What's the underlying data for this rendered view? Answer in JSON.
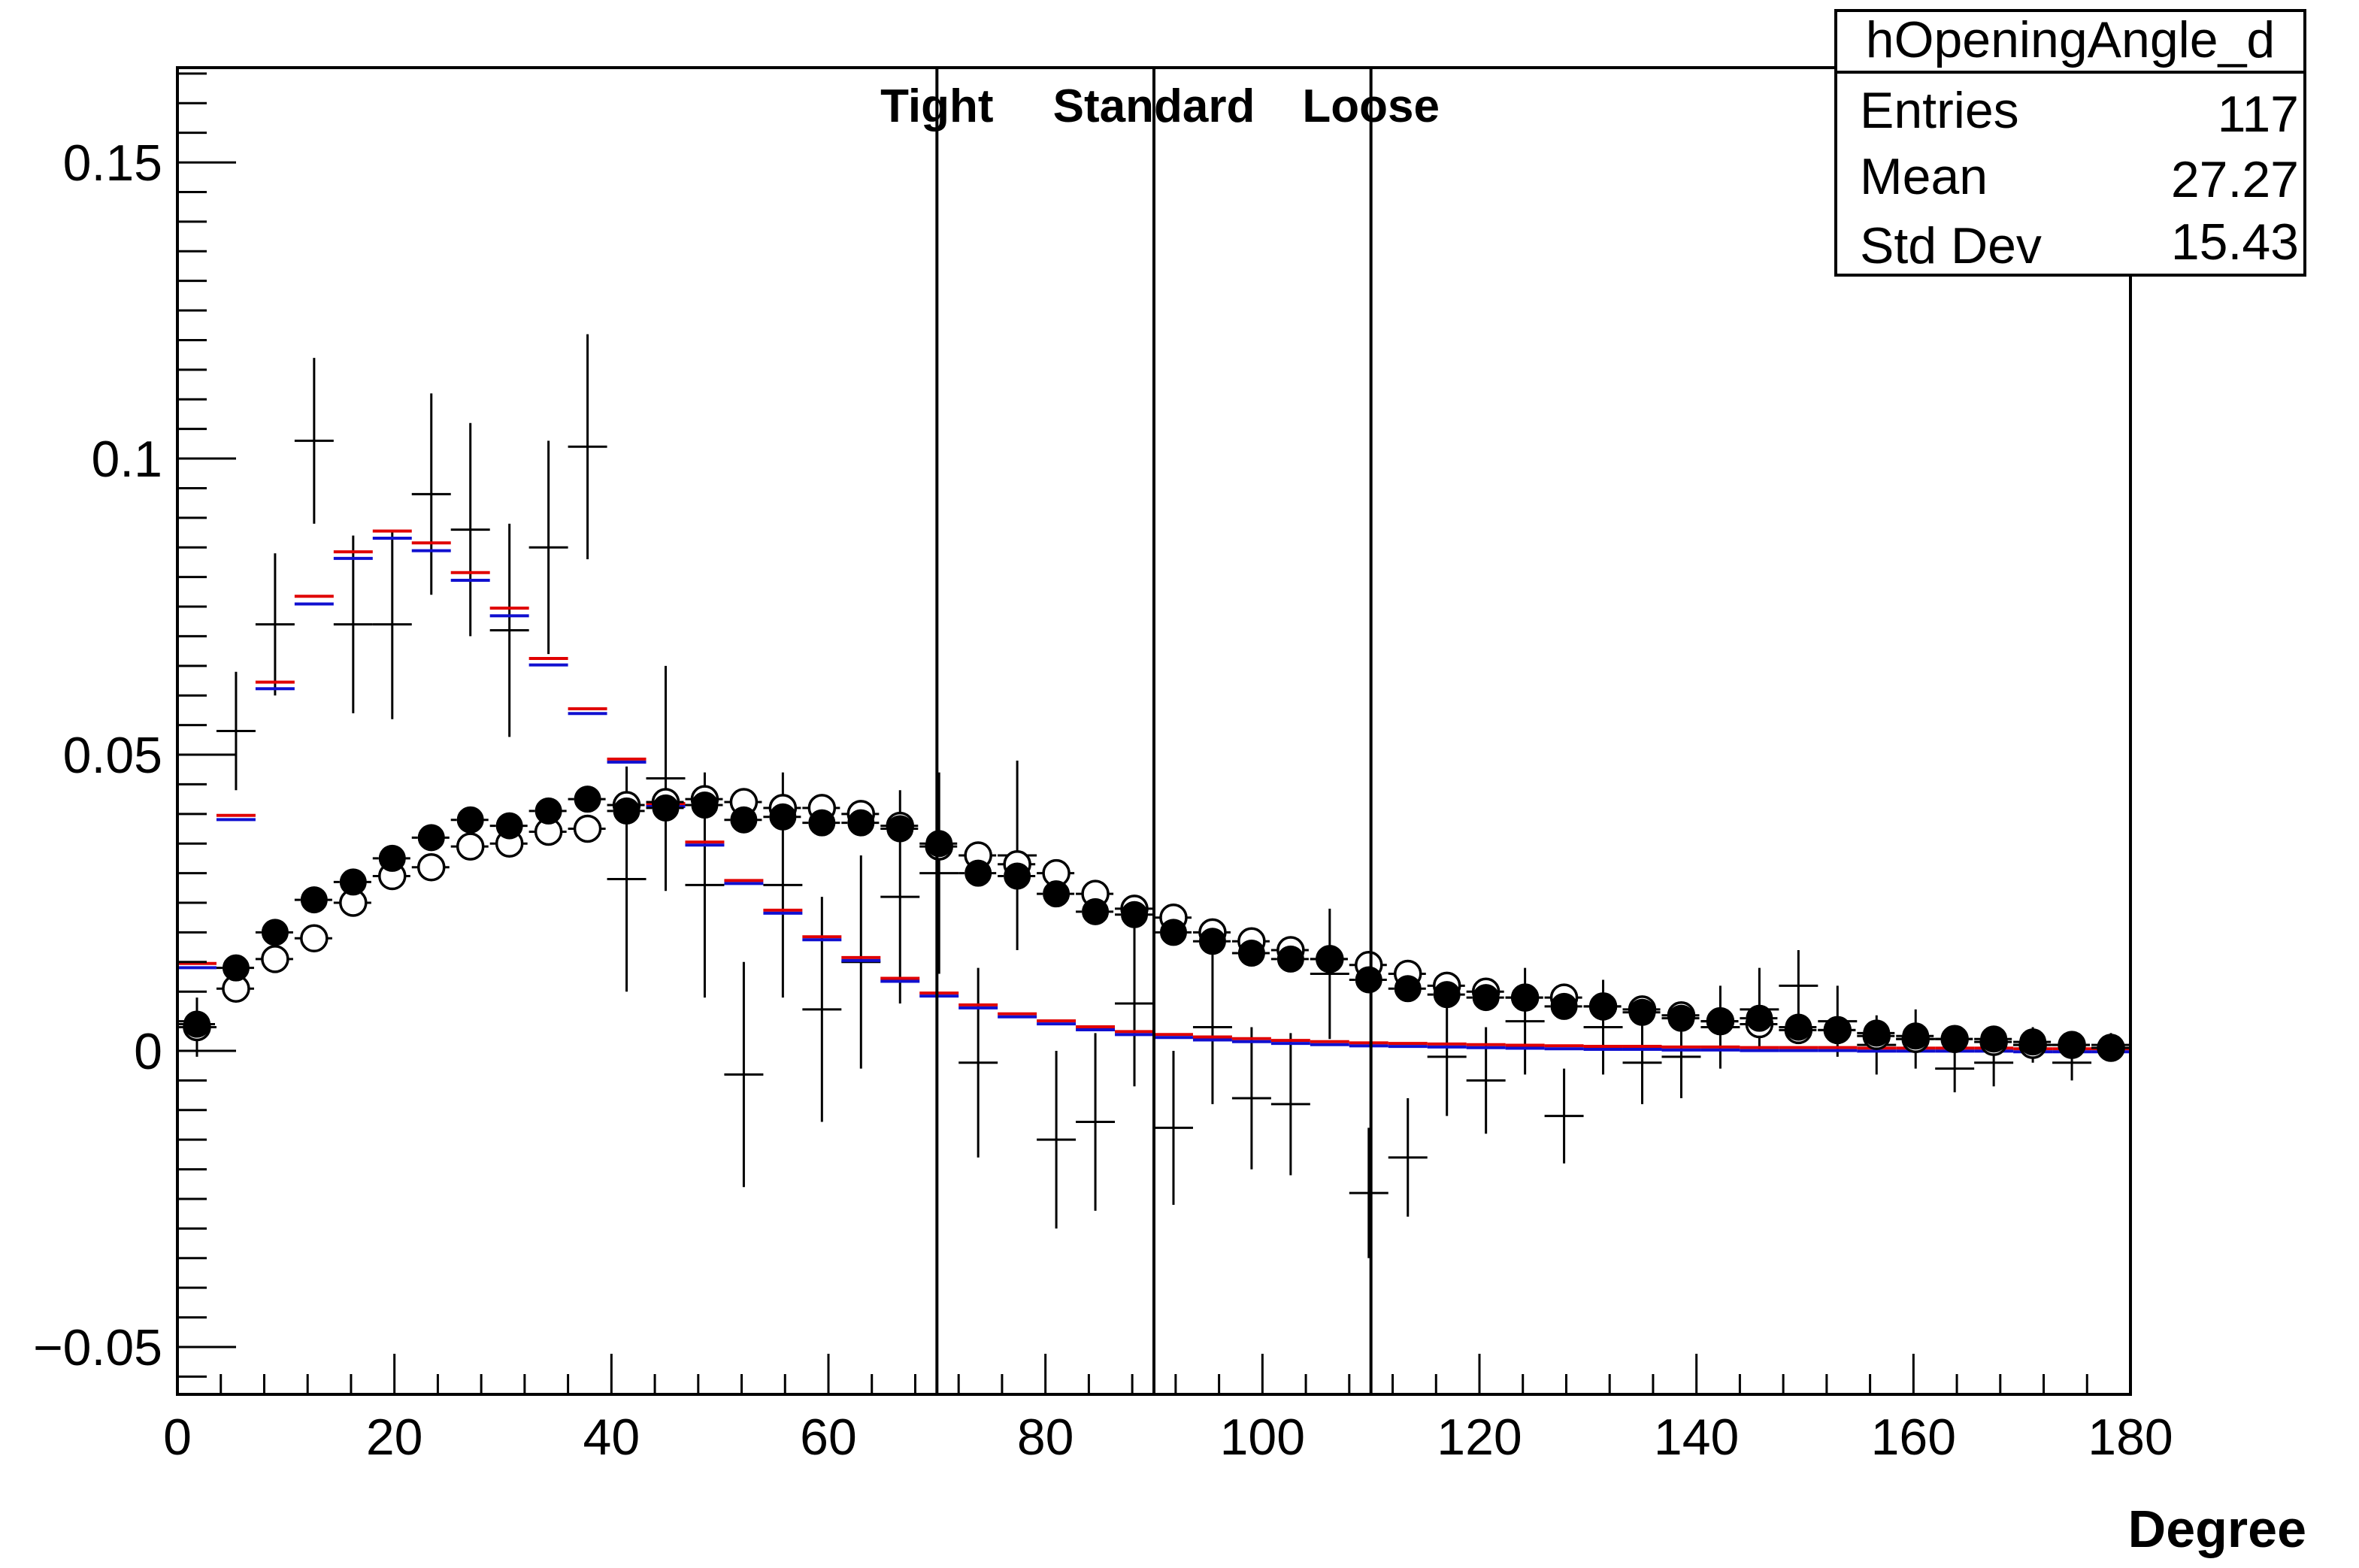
{
  "chart_data": {
    "type": "scatter",
    "xlabel": "Degree",
    "ylabel": "",
    "xlim": [
      0,
      180
    ],
    "ylim": [
      -0.058,
      0.166
    ],
    "xticks": [
      "0",
      "20",
      "40",
      "60",
      "80",
      "100",
      "120",
      "140",
      "160",
      "180"
    ],
    "yticks": [
      "−0.05",
      "0",
      "0.05",
      "0.1",
      "0.15"
    ],
    "grid": false,
    "stats_box": {
      "title": "hOpeningAngle_d",
      "rows": [
        {
          "label": "Entries",
          "value": "117"
        },
        {
          "label": "Mean",
          "value": "27.27"
        },
        {
          "label": "Std Dev",
          "value": "15.43"
        }
      ]
    },
    "cut_lines": [
      {
        "label": "Tight",
        "x": 70
      },
      {
        "label": "Standard",
        "x": 90
      },
      {
        "label": "Loose",
        "x": 110
      }
    ],
    "bin_width": 3.6,
    "series": [
      {
        "style": "crosses",
        "color": "#000000",
        "x": [
          1.8,
          5.4,
          9,
          12.6,
          16.2,
          19.8,
          23.4,
          27,
          30.6,
          34.2,
          37.8,
          41.4,
          45,
          48.6,
          52.2,
          55.8,
          59.4,
          63,
          66.6,
          70.2,
          73.8,
          77.4,
          81,
          84.6,
          88.2,
          91.8,
          95.4,
          99,
          102.6,
          106.2,
          109.8,
          113.4,
          117,
          120.6,
          124.2,
          127.8,
          131.4,
          135,
          138.6,
          142.2,
          145.8,
          149.4,
          153,
          156.6,
          160.2,
          163.8,
          167.4,
          171,
          174.6,
          178.2
        ],
        "y": [
          0.004,
          0.054,
          0.072,
          0.103,
          0.072,
          0.072,
          0.094,
          0.088,
          0.071,
          0.085,
          0.102,
          0.029,
          0.046,
          0.028,
          -0.004,
          0.028,
          0.007,
          0.015,
          0.026,
          0.03,
          -0.002,
          0.033,
          -0.015,
          -0.012,
          0.008,
          -0.013,
          0.004,
          -0.008,
          -0.009,
          0.013,
          -0.024,
          -0.018,
          -0.001,
          -0.005,
          0.005,
          -0.011,
          0.004,
          -0.002,
          -0.001,
          0.004,
          0.007,
          0.011,
          0.005,
          0.001,
          0.002,
          -0.003,
          -0.002,
          0.001,
          -0.002,
          0.001
        ],
        "yerr": [
          0.005,
          0.01,
          0.012,
          0.014,
          0.015,
          0.016,
          0.017,
          0.018,
          0.018,
          0.018,
          0.019,
          0.019,
          0.019,
          0.019,
          0.019,
          0.019,
          0.019,
          0.018,
          0.018,
          0.017,
          0.016,
          0.016,
          0.015,
          0.015,
          0.014,
          0.013,
          0.013,
          0.012,
          0.012,
          0.011,
          0.011,
          0.01,
          0.01,
          0.009,
          0.009,
          0.008,
          0.008,
          0.007,
          0.007,
          0.007,
          0.007,
          0.006,
          0.006,
          0.005,
          0.005,
          0.004,
          0.004,
          0.003,
          0.003,
          0.002
        ]
      },
      {
        "style": "bin-markers",
        "color": "#e00000",
        "x": [
          1.8,
          5.4,
          9,
          12.6,
          16.2,
          19.8,
          23.4,
          27,
          30.6,
          34.2,
          37.8,
          41.4,
          45,
          48.6,
          52.2,
          55.8,
          59.4,
          63,
          66.6,
          70.2,
          73.8,
          77.4,
          81,
          84.6,
          88.2,
          91.8,
          95.4,
          99,
          102.6,
          106.2,
          109.8,
          113.4,
          117,
          120.6,
          124.2,
          127.8,
          131.4,
          135,
          138.6,
          142.2,
          145.8,
          149.4,
          153,
          156.6,
          160.2,
          163.8,
          167.4,
          171,
          174.6,
          178.2
        ],
        "y": [
          0.0145,
          0.0395,
          0.062,
          0.0765,
          0.084,
          0.0875,
          0.0855,
          0.0805,
          0.0745,
          0.066,
          0.0575,
          0.049,
          0.0415,
          0.035,
          0.0285,
          0.0235,
          0.019,
          0.0155,
          0.012,
          0.0095,
          0.0075,
          0.006,
          0.0048,
          0.0038,
          0.003,
          0.0025,
          0.0021,
          0.0018,
          0.0015,
          0.0013,
          0.0011,
          0.001,
          0.0009,
          0.0008,
          0.0007,
          0.0006,
          0.0005,
          0.0005,
          0.0004,
          0.0004,
          0.0003,
          0.0003,
          0.0003,
          0.0002,
          0.0002,
          0.0002,
          0.0002,
          0.0001,
          0.0001,
          0.0001
        ]
      },
      {
        "style": "bin-markers",
        "color": "#1010d0",
        "x": [
          1.8,
          5.4,
          9,
          12.6,
          16.2,
          19.8,
          23.4,
          27,
          30.6,
          34.2,
          37.8,
          41.4,
          45,
          48.6,
          52.2,
          55.8,
          59.4,
          63,
          66.6,
          70.2,
          73.8,
          77.4,
          81,
          84.6,
          88.2,
          91.8,
          95.4,
          99,
          102.6,
          106.2,
          109.8,
          113.4,
          117,
          120.6,
          124.2,
          127.8,
          131.4,
          135,
          138.6,
          142.2,
          145.8,
          149.4,
          153,
          156.6,
          160.2,
          163.8,
          167.4,
          171,
          174.6,
          178.2
        ],
        "y": [
          0.0143,
          0.0393,
          0.0614,
          0.0757,
          0.0834,
          0.0868,
          0.0847,
          0.0797,
          0.0737,
          0.0654,
          0.0572,
          0.049,
          0.0415,
          0.035,
          0.0285,
          0.0235,
          0.019,
          0.0155,
          0.012,
          0.0095,
          0.0075,
          0.006,
          0.0048,
          0.0038,
          0.003,
          0.0025,
          0.0021,
          0.0018,
          0.0015,
          0.0013,
          0.0011,
          0.001,
          0.0009,
          0.0008,
          0.0007,
          0.0006,
          0.0005,
          0.0005,
          0.0004,
          0.0004,
          0.0003,
          0.0003,
          0.0003,
          0.0002,
          0.0002,
          0.0002,
          0.0002,
          0.0001,
          0.0001,
          0.0001
        ]
      },
      {
        "style": "open-circles",
        "color": "#000000",
        "x": [
          1.8,
          5.4,
          9,
          12.6,
          16.2,
          19.8,
          23.4,
          27,
          30.6,
          34.2,
          37.8,
          41.4,
          45,
          48.6,
          52.2,
          55.8,
          59.4,
          63,
          66.6,
          70.2,
          73.8,
          77.4,
          81,
          84.6,
          88.2,
          91.8,
          95.4,
          99,
          102.6,
          106.2,
          109.8,
          113.4,
          117,
          120.6,
          124.2,
          127.8,
          131.4,
          135,
          138.6,
          142.2,
          145.8,
          149.4,
          153,
          156.6,
          160.2,
          163.8,
          167.4,
          171,
          174.6,
          178.2
        ],
        "y": [
          0.004,
          0.0105,
          0.0155,
          0.019,
          0.025,
          0.0295,
          0.031,
          0.0345,
          0.035,
          0.037,
          0.0375,
          0.0415,
          0.042,
          0.0425,
          0.042,
          0.041,
          0.041,
          0.04,
          0.038,
          0.0345,
          0.033,
          0.0315,
          0.03,
          0.0265,
          0.024,
          0.0225,
          0.02,
          0.0185,
          0.017,
          0.0155,
          0.0145,
          0.013,
          0.011,
          0.01,
          0.009,
          0.009,
          0.0075,
          0.007,
          0.006,
          0.005,
          0.0045,
          0.0035,
          0.0035,
          0.0025,
          0.002,
          0.002,
          0.0015,
          0.001,
          0.001,
          0.0005
        ]
      },
      {
        "style": "filled-circles",
        "color": "#000000",
        "x": [
          1.8,
          5.4,
          9,
          12.6,
          16.2,
          19.8,
          23.4,
          27,
          30.6,
          34.2,
          37.8,
          41.4,
          45,
          48.6,
          52.2,
          55.8,
          59.4,
          63,
          66.6,
          70.2,
          73.8,
          77.4,
          81,
          84.6,
          88.2,
          91.8,
          95.4,
          99,
          102.6,
          106.2,
          109.8,
          113.4,
          117,
          120.6,
          124.2,
          127.8,
          131.4,
          135,
          138.6,
          142.2,
          145.8,
          149.4,
          153,
          156.6,
          160.2,
          163.8,
          167.4,
          171,
          174.6,
          178.2
        ],
        "y": [
          0.0045,
          0.014,
          0.02,
          0.0255,
          0.0285,
          0.0325,
          0.036,
          0.039,
          0.038,
          0.0405,
          0.0425,
          0.0405,
          0.041,
          0.0415,
          0.039,
          0.0395,
          0.0385,
          0.0385,
          0.0375,
          0.035,
          0.03,
          0.0295,
          0.0265,
          0.0235,
          0.023,
          0.02,
          0.0185,
          0.0165,
          0.0155,
          0.0155,
          0.012,
          0.0105,
          0.0095,
          0.009,
          0.009,
          0.0075,
          0.0075,
          0.0065,
          0.0055,
          0.005,
          0.0055,
          0.004,
          0.0035,
          0.003,
          0.0025,
          0.002,
          0.002,
          0.0015,
          0.001,
          0.0005
        ]
      }
    ]
  }
}
